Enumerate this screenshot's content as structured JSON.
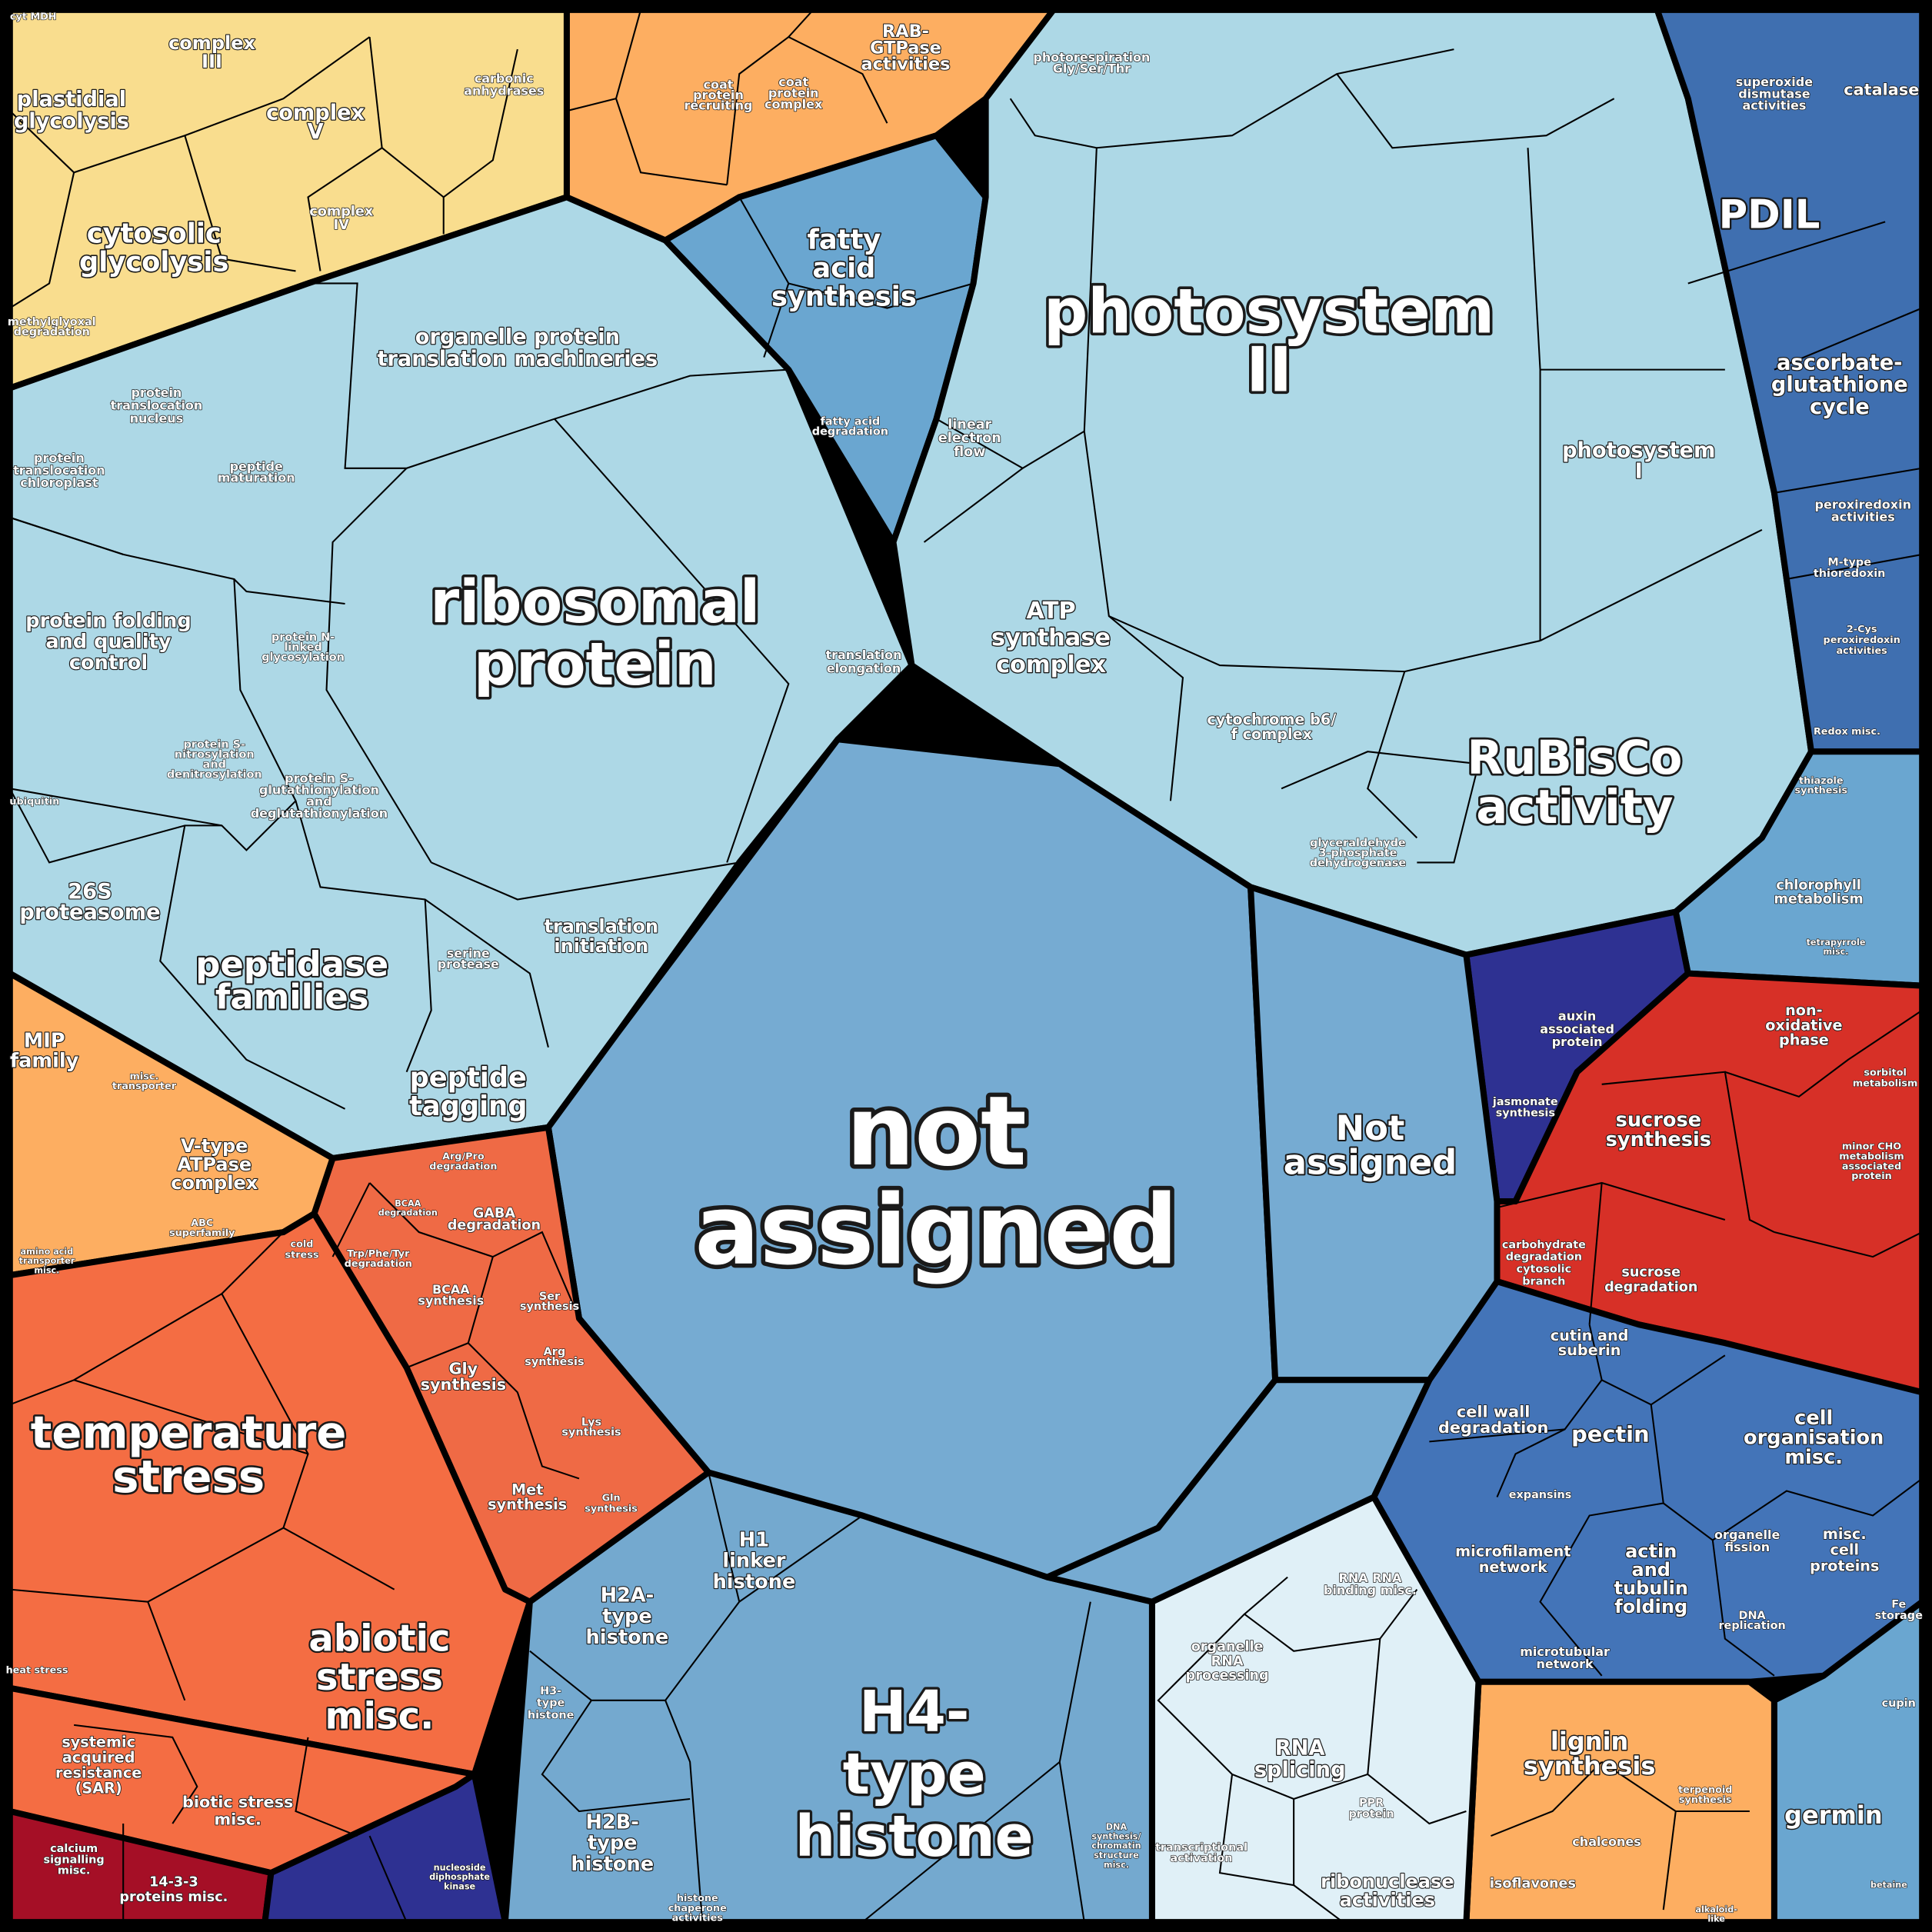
{
  "colors": {
    "energy": "#f9dd8e",
    "protein": "#add8e6",
    "lipid_transport": "#fdae61",
    "fatty_acid": "#6aa6d0",
    "photosynthesis": "#add8e6",
    "redox": "#3f6fb0",
    "coenzyme": "#6aa6d0",
    "hormone": "#2e3192",
    "carbohydrate": "#d73027",
    "cell_wall": "#4374b8",
    "secondary": "#fdae61",
    "germin": "#6aa6d0",
    "rna": "#e0f0f7",
    "chromatin": "#74a9cf",
    "not_assigned": "#76abd2",
    "amino_acid": "#ef6a45",
    "stress": "#f46d43",
    "transport": "#fdae61",
    "biotic": "#f46d43",
    "signalling": "#a50f26",
    "nucleotide": "#2e3192"
  },
  "labels": {
    "not_assigned_main": [
      "not",
      "assigned"
    ],
    "photosystem_ii": [
      "photosystem",
      "II"
    ],
    "ribosomal_protein": [
      "ribosomal",
      "protein"
    ],
    "h4_histone": [
      "H4-",
      "type",
      "histone"
    ],
    "rubisco": [
      "RuBisCo",
      "activity"
    ],
    "temperature_stress": [
      "temperature",
      "stress"
    ],
    "abiotic_stress": [
      "abiotic",
      "stress",
      "misc."
    ],
    "pdil": [
      "PDIL"
    ],
    "peptidase": [
      "peptidase",
      "families"
    ],
    "not_assigned_2": [
      "Not",
      "assigned"
    ],
    "fatty_acid_synthesis": [
      "fatty",
      "acid",
      "synthesis"
    ],
    "cytosolic_glycolysis": [
      "cytosolic",
      "glycolysis"
    ],
    "ascorbate": [
      "ascorbate-",
      "glutathione",
      "cycle"
    ],
    "peptide_tagging": [
      "peptide",
      "tagging"
    ],
    "lignin": [
      "lignin",
      "synthesis"
    ],
    "germin": [
      "germin"
    ],
    "atp_synthase": [
      "ATP",
      "synthase",
      "complex"
    ],
    "photosystem_i": [
      "photosystem",
      "I"
    ],
    "plastidial_glycolysis": [
      "plastidial",
      "glycolysis"
    ],
    "complex_v": [
      "complex",
      "V"
    ],
    "complex_iii": [
      "complex",
      "III"
    ],
    "organelle_translation": [
      "organelle protein",
      "translation machineries"
    ],
    "protein_folding": [
      "protein folding",
      "and quality",
      "control"
    ],
    "proteasome": [
      "26S",
      "proteasome"
    ],
    "v_atpase": [
      "V-type",
      "ATPase",
      "complex"
    ],
    "mip": [
      "MIP",
      "family"
    ],
    "h1": [
      "H1",
      "linker",
      "histone"
    ],
    "h2a": [
      "H2A-",
      "type",
      "histone"
    ],
    "h2b": [
      "H2B-",
      "type",
      "histone"
    ],
    "rna_splicing": [
      "RNA",
      "splicing"
    ],
    "ribonuclease": [
      "ribonuclease",
      "activities"
    ],
    "cell_org": [
      "cell",
      "organisation",
      "misc."
    ],
    "pectin": [
      "pectin"
    ],
    "cell_wall_deg": [
      "cell wall",
      "degradation"
    ],
    "cutin": [
      "cutin and",
      "suberin"
    ],
    "microfilament": [
      "microfilament",
      "network"
    ],
    "actin": [
      "actin",
      "and",
      "tubulin",
      "folding"
    ],
    "misc_cell": [
      "misc.",
      "cell",
      "proteins"
    ],
    "sucrose_synth": [
      "sucrose",
      "synthesis"
    ],
    "non_oxidative": [
      "non-",
      "oxidative",
      "phase"
    ],
    "sucrose_deg": [
      "sucrose",
      "degradation"
    ],
    "carb_deg": [
      "carbohydrate",
      "degradation",
      "cytosolic",
      "branch"
    ],
    "chlorophyll": [
      "chlorophyll",
      "metabolism"
    ],
    "auxin": [
      "auxin",
      "associated",
      "protein"
    ],
    "catalase": [
      "catalase"
    ],
    "sod": [
      "superoxide",
      "dismutase",
      "activities"
    ],
    "peroxiredoxin": [
      "peroxiredoxin",
      "activities"
    ],
    "m_thioredoxin": [
      "M-type",
      "thioredoxin"
    ],
    "cys_prx": [
      "2-Cys",
      "peroxiredoxin",
      "activities"
    ],
    "gly_synth": [
      "Gly",
      "synthesis"
    ],
    "met_synth": [
      "Met",
      "synthesis"
    ],
    "gaba": [
      "GABA",
      "degradation"
    ],
    "bcaa_synth": [
      "BCAA",
      "synthesis"
    ],
    "translation_init": [
      "translation",
      "initiation"
    ],
    "translation_elong": [
      "translation",
      "elongation"
    ],
    "serine_protease": [
      "serine",
      "protease"
    ],
    "transloc_nucleus": [
      "protein",
      "translocation",
      "nucleus"
    ],
    "transloc_chloroplast": [
      "protein",
      "translocation",
      "chloroplast"
    ],
    "peptide_maturation": [
      "peptide",
      "maturation"
    ],
    "glutathionylation": [
      "protein S-",
      "glutathionylation",
      "and",
      "deglutathionylation"
    ],
    "nitrosylation": [
      "protein S-",
      "nitrosylation",
      "and",
      "denitrosylation"
    ],
    "n_glyco": [
      "protein N-",
      "linked",
      "glycosylation"
    ],
    "rab": [
      "RAB-",
      "GTPase",
      "activities"
    ],
    "coat_complex": [
      "coat",
      "protein",
      "complex"
    ],
    "coat_recruit": [
      "coat",
      "protein",
      "recruiting"
    ],
    "carbonic": [
      "carbonic",
      "anhydrases"
    ],
    "complex_iv": [
      "complex",
      "IV"
    ],
    "methylglyoxal": [
      "methylglyoxal",
      "degradation"
    ],
    "photorespiration": [
      "photorespiration",
      "Gly/Ser/Thr"
    ],
    "linear_flow": [
      "linear",
      "electron",
      "flow"
    ],
    "cyt_b6f": [
      "cytochrome b6/",
      "f complex"
    ],
    "gapdh": [
      "glyceraldehyde",
      "3-phosphate",
      "dehydrogenase"
    ],
    "fa_deg": [
      "fatty acid",
      "degradation"
    ],
    "sar": [
      "systemic",
      "acquired",
      "resistance",
      "(SAR)"
    ],
    "biotic": [
      "biotic stress",
      "misc."
    ],
    "calcium": [
      "calcium",
      "signalling",
      "misc."
    ],
    "p1433": [
      "14-3-3",
      "proteins misc."
    ],
    "heat": [
      "heat stress"
    ],
    "org_rna": [
      "organelle",
      "RNA",
      "processing"
    ],
    "rna_binding": [
      "RNA RNA",
      "binding misc."
    ],
    "ppr": [
      "PPR",
      "protein"
    ],
    "transcr": [
      "transcriptional",
      "activation"
    ],
    "microtubular": [
      "microtubular",
      "network"
    ],
    "fission": [
      "organelle",
      "fission"
    ],
    "dna_rep": [
      "DNA",
      "replication"
    ],
    "expansins": [
      "expansins"
    ],
    "isoflavones": [
      "isoflavones"
    ],
    "chalcones": [
      "chalcones"
    ],
    "terpenoid": [
      "terpenoid",
      "synthesis"
    ],
    "fe_storage": [
      "Fe",
      "storage"
    ],
    "cupin": [
      "cupin"
    ],
    "jasmonate": [
      "jasmonate",
      "synthesis"
    ],
    "minor_cho": [
      "minor CHO",
      "metabolism",
      "associated",
      "protein"
    ],
    "sorbitol": [
      "sorbitol",
      "metabolism"
    ],
    "redox_misc": [
      "Redox misc."
    ],
    "thiazole": [
      "thiazole",
      "synthesis"
    ],
    "tetrapyrrole": [
      "tetrapyrrole",
      "misc."
    ],
    "ubiquitin": [
      "ubiquitin"
    ],
    "cold": [
      "cold",
      "stress"
    ],
    "abc": [
      "ABC",
      "superfamily"
    ],
    "misc_transporter": [
      "misc.",
      "transporter"
    ],
    "aa_transporter": [
      "amino acid",
      "transporter",
      "misc."
    ],
    "cyt_mdh": [
      "cyt MDH"
    ],
    "arg_pro": [
      "Arg/Pro",
      "degradation"
    ],
    "bcaa_deg": [
      "BCAA",
      "degradation"
    ],
    "trp": [
      "Trp/Phe/Tyr",
      "degradation"
    ],
    "ser": [
      "Ser",
      "synthesis"
    ],
    "arg": [
      "Arg",
      "synthesis"
    ],
    "lys": [
      "Lys",
      "synthesis"
    ],
    "gln": [
      "Gln",
      "synthesis"
    ],
    "h3": [
      "H3-",
      "type",
      "histone"
    ],
    "histone_chap": [
      "histone",
      "chaperone",
      "activities"
    ],
    "dna_synth": [
      "DNA",
      "synthesis/",
      "chromatin",
      "structure",
      "misc."
    ],
    "ndk": [
      "nucleoside",
      "diphosphate",
      "kinase"
    ],
    "alkaloid": [
      "alkaloid-",
      "like"
    ],
    "betaine": [
      "betaine"
    ]
  }
}
